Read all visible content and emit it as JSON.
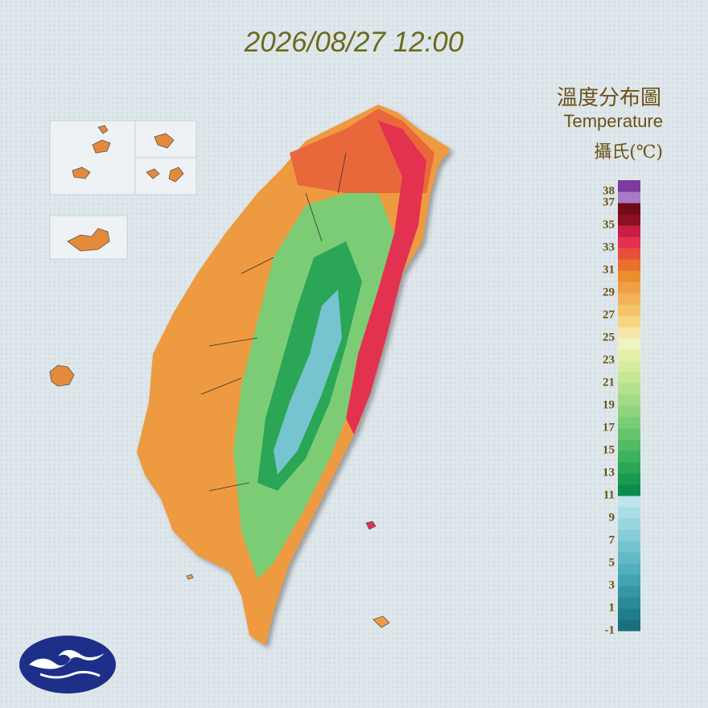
{
  "title": "2026/08/27 12:00",
  "legend": {
    "title": "溫度分布圖",
    "subtitle": "Temperature",
    "unit": "攝氏(℃)",
    "range": [
      -1,
      39
    ],
    "ticks": [
      38,
      37,
      35,
      33,
      31,
      29,
      27,
      25,
      23,
      21,
      19,
      17,
      15,
      13,
      11,
      9,
      7,
      5,
      3,
      1,
      -1
    ],
    "colors": [
      "#1a6f7f",
      "#207d8c",
      "#2a8a98",
      "#3597a5",
      "#42a3b1",
      "#52afbc",
      "#63bac6",
      "#74c4cf",
      "#86cdd7",
      "#98d6de",
      "#aadee5",
      "#bce6eb",
      "#0a8c4a",
      "#1a9a50",
      "#2ba656",
      "#3db15e",
      "#52bb66",
      "#66c46e",
      "#7bcc76",
      "#8fd47e",
      "#a2db86",
      "#b4e18e",
      "#c5e796",
      "#d4ec9f",
      "#e2f0ac",
      "#eef3c0",
      "#f7e4a6",
      "#f6d580",
      "#f4c36a",
      "#f2b257",
      "#efa044",
      "#ec8e30",
      "#e9702e",
      "#e8503a",
      "#e23050",
      "#c81e45",
      "#8c1020",
      "#6e0c18",
      "#a87cc4",
      "#7d3ba0"
    ]
  }
}
